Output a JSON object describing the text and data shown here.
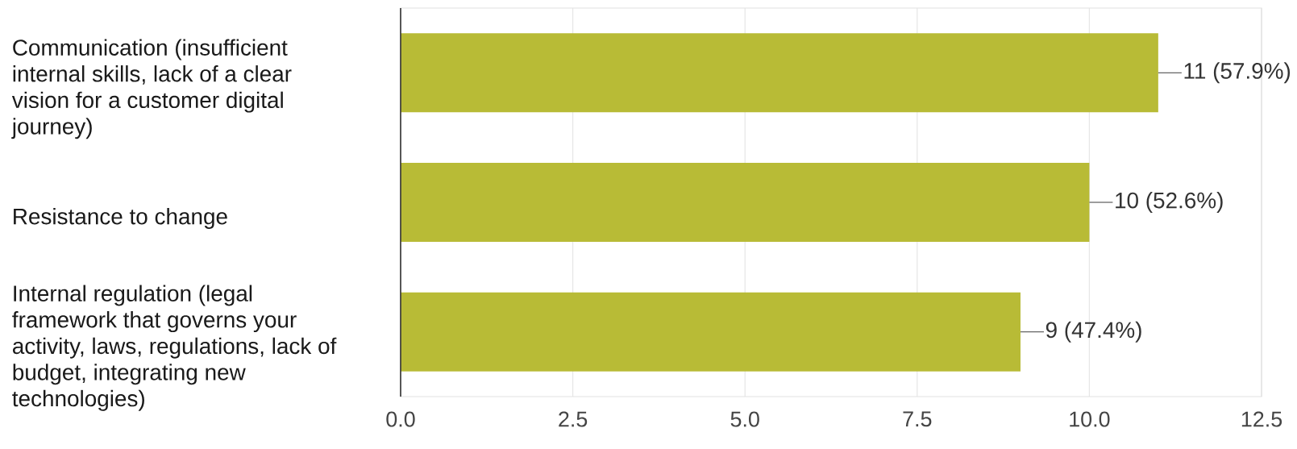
{
  "chart_data": {
    "type": "bar",
    "orientation": "horizontal",
    "categories": [
      "Communication (insufficient internal skills, lack of a clear vision for a customer digital journey)",
      "Resistance to change",
      "Internal regulation (legal framework that governs your activity, laws, regulations, lack of budget, integrating new technologies)"
    ],
    "values": [
      11,
      10,
      9
    ],
    "value_labels": [
      "11 (57.9%)",
      "10 (52.6%)",
      "9 (47.4%)"
    ],
    "color": "#b8bb36",
    "xlim": [
      0,
      12.5
    ],
    "xticks": [
      {
        "value": 0,
        "label": "0.0"
      },
      2.5,
      {
        "value": 5,
        "label": "5.0"
      },
      7.5,
      {
        "value": 10,
        "label": "10.0"
      },
      12.5
    ],
    "grid": "x"
  }
}
